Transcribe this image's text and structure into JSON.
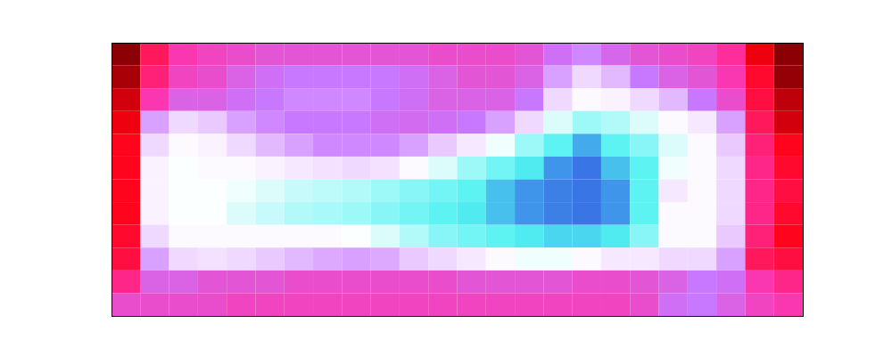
{
  "chart_data": {
    "type": "heatmap",
    "xlim": [
      0,
      24
    ],
    "ylim": [
      0,
      12
    ],
    "zlim": [
      0,
      100
    ],
    "tick_labels": false,
    "grid": false,
    "columns": [
      [
        5,
        8,
        12,
        15,
        18,
        18,
        18,
        18,
        20,
        22,
        30,
        40
      ],
      [
        25,
        28,
        35,
        55,
        62,
        65,
        65,
        65,
        62,
        55,
        45,
        40
      ],
      [
        35,
        38,
        45,
        62,
        66,
        67,
        67,
        67,
        66,
        62,
        45,
        40
      ],
      [
        38,
        40,
        45,
        60,
        65,
        66,
        67,
        67,
        66,
        63,
        42,
        40
      ],
      [
        40,
        45,
        48,
        55,
        62,
        66,
        68,
        70,
        66,
        62,
        42,
        38
      ],
      [
        42,
        48,
        50,
        52,
        58,
        65,
        70,
        72,
        66,
        60,
        42,
        38
      ],
      [
        42,
        50,
        52,
        50,
        55,
        64,
        72,
        74,
        66,
        58,
        40,
        38
      ],
      [
        42,
        50,
        52,
        50,
        52,
        63,
        73,
        75,
        66,
        56,
        40,
        38
      ],
      [
        42,
        50,
        52,
        50,
        52,
        62,
        74,
        76,
        67,
        55,
        40,
        38
      ],
      [
        42,
        50,
        50,
        48,
        52,
        63,
        76,
        78,
        70,
        56,
        40,
        38
      ],
      [
        42,
        48,
        48,
        47,
        55,
        66,
        78,
        80,
        74,
        60,
        40,
        38
      ],
      [
        40,
        45,
        45,
        48,
        60,
        70,
        80,
        82,
        78,
        62,
        40,
        38
      ],
      [
        40,
        42,
        45,
        50,
        64,
        76,
        82,
        84,
        80,
        64,
        42,
        38
      ],
      [
        40,
        42,
        45,
        55,
        68,
        80,
        88,
        88,
        82,
        66,
        42,
        38
      ],
      [
        42,
        45,
        50,
        62,
        76,
        84,
        92,
        92,
        84,
        68,
        42,
        38
      ],
      [
        48,
        55,
        62,
        70,
        82,
        92,
        94,
        94,
        86,
        68,
        42,
        38
      ],
      [
        52,
        62,
        66,
        76,
        90,
        95,
        95,
        95,
        86,
        66,
        40,
        38
      ],
      [
        46,
        58,
        65,
        74,
        82,
        88,
        92,
        92,
        84,
        64,
        40,
        38
      ],
      [
        42,
        50,
        62,
        70,
        78,
        82,
        82,
        82,
        78,
        64,
        42,
        40
      ],
      [
        40,
        45,
        58,
        66,
        70,
        68,
        64,
        66,
        66,
        62,
        45,
        48
      ],
      [
        38,
        42,
        50,
        64,
        66,
        66,
        66,
        66,
        66,
        62,
        50,
        50
      ],
      [
        32,
        35,
        40,
        55,
        60,
        62,
        62,
        62,
        60,
        55,
        48,
        45
      ],
      [
        15,
        20,
        22,
        25,
        28,
        30,
        30,
        30,
        28,
        25,
        35,
        38
      ],
      [
        5,
        6,
        10,
        12,
        18,
        20,
        22,
        20,
        18,
        22,
        30,
        35
      ]
    ]
  }
}
